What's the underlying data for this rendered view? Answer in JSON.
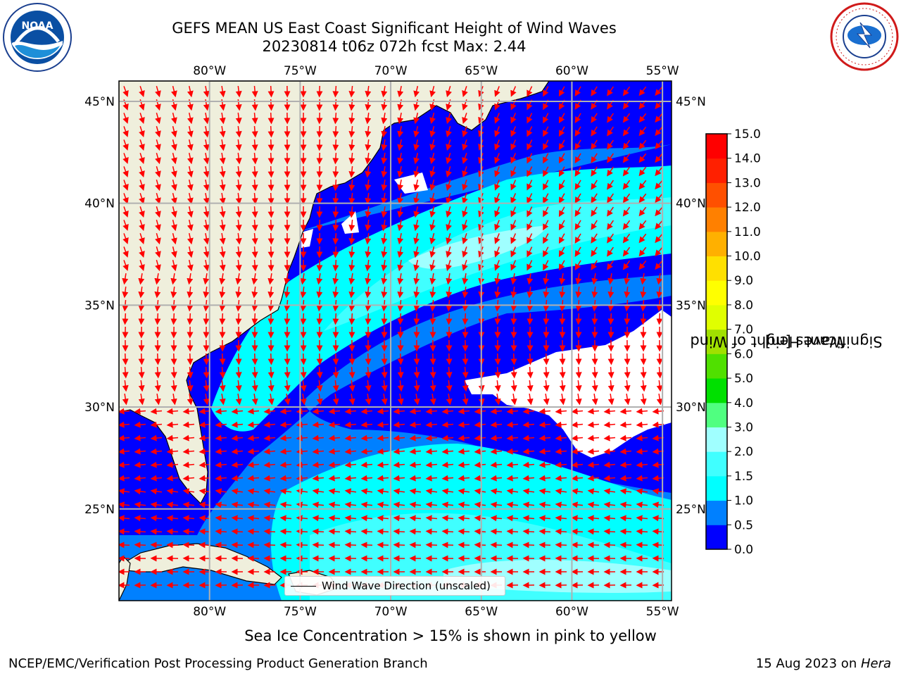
{
  "header": {
    "title_line1": "GEFS MEAN US East Coast Significant Height of Wind Waves",
    "title_line2": "20230814 t06z 072h fcst   Max: 2.44"
  },
  "map": {
    "lon_labels": [
      "80°W",
      "75°W",
      "70°W",
      "65°W",
      "60°W",
      "55°W"
    ],
    "lon_values": [
      -80,
      -75,
      -70,
      -65,
      -60,
      -55
    ],
    "lat_labels": [
      "45°N",
      "40°N",
      "35°N",
      "30°N",
      "25°N"
    ],
    "lat_values": [
      45,
      40,
      35,
      30,
      25
    ],
    "extent": {
      "lon_min": -85,
      "lon_max": -54.5,
      "lat_min": 20.5,
      "lat_max": 46
    },
    "colors": {
      "land": "#efefdc",
      "grid": "#b0b0b0",
      "arrow": "#ff0000"
    }
  },
  "legend": {
    "label": "Wind Wave Direction (unscaled)"
  },
  "colorbar": {
    "label": "Significant Height of Wind Waves [m]",
    "label_line1": "Significant Height of Wind",
    "label_line2": "Waves [m]",
    "ticks": [
      "0.0",
      "0.5",
      "1.0",
      "1.5",
      "2.0",
      "3.0",
      "4.0",
      "5.0",
      "6.0",
      "7.0",
      "8.0",
      "9.0",
      "10.0",
      "11.0",
      "12.0",
      "13.0",
      "14.0",
      "15.0"
    ],
    "colors": [
      "#0000ff",
      "#0080ff",
      "#00ffff",
      "#40ffff",
      "#a0ffff",
      "#50ff80",
      "#00e000",
      "#50e000",
      "#a0e000",
      "#e0ff00",
      "#ffff00",
      "#ffe000",
      "#ffb000",
      "#ff8000",
      "#ff5000",
      "#ff2000",
      "#ff0000"
    ]
  },
  "caption": "Sea Ice Concentration > 15% is shown in pink to yellow",
  "footer": {
    "left": "NCEP/EMC/Verification Post Processing Product Generation Branch",
    "right_text": "15 Aug 2023 on ",
    "right_italic": "Hera"
  },
  "logos": {
    "noaa_text": "NOAA",
    "nws_text": "NATIONAL WEATHER SERVICE"
  }
}
